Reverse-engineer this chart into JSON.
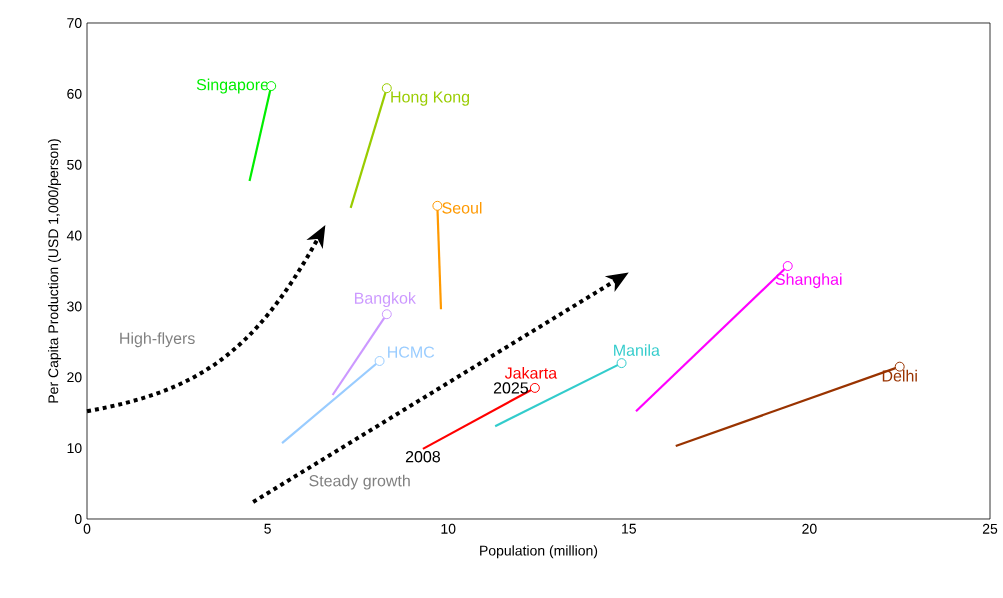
{
  "chart_data": {
    "type": "line",
    "xlabel": "Population (million)",
    "ylabel": "Per Capita Production (USD 1,000/person)",
    "xlim": [
      0,
      25
    ],
    "xticks": [
      0,
      5,
      10,
      15,
      20,
      25
    ],
    "ylim": [
      0,
      70
    ],
    "yticks": [
      0,
      10,
      20,
      30,
      40,
      50,
      60,
      70
    ],
    "grid": false,
    "legend": false,
    "marker": "circle",
    "series": [
      {
        "name": "Singapore",
        "color": "#00ee00",
        "x": [
          4.5,
          5.1
        ],
        "values": [
          47.7,
          61.1
        ]
      },
      {
        "name": "Hong Kong",
        "color": "#99cc00",
        "x": [
          7.3,
          8.3
        ],
        "values": [
          43.9,
          60.8
        ]
      },
      {
        "name": "Seoul",
        "color": "#ff9900",
        "x": [
          9.8,
          9.7
        ],
        "values": [
          29.6,
          44.2
        ]
      },
      {
        "name": "Bangkok",
        "color": "#cc99ff",
        "x": [
          6.8,
          8.3
        ],
        "values": [
          17.5,
          28.9
        ]
      },
      {
        "name": "HCMC",
        "color": "#99ccff",
        "x": [
          5.4,
          8.1
        ],
        "values": [
          10.7,
          22.3
        ]
      },
      {
        "name": "Jakarta",
        "color": "#ff0000",
        "x": [
          9.3,
          12.4
        ],
        "values": [
          9.9,
          18.5
        ]
      },
      {
        "name": "Manila",
        "color": "#33cccc",
        "x": [
          11.3,
          14.8
        ],
        "values": [
          13.1,
          22.0
        ]
      },
      {
        "name": "Shanghai",
        "color": "#ff00ff",
        "x": [
          15.2,
          19.4
        ],
        "values": [
          15.2,
          35.7
        ]
      },
      {
        "name": "Delhi",
        "color": "#993300",
        "x": [
          16.3,
          22.5
        ],
        "values": [
          10.3,
          21.5
        ]
      }
    ],
    "annotations": [
      {
        "text": "2008",
        "x": 9.3,
        "y": 9.9
      },
      {
        "text": "2025",
        "x": 12.4,
        "y": 18.5
      },
      "High-flyers",
      "Steady growth"
    ]
  }
}
